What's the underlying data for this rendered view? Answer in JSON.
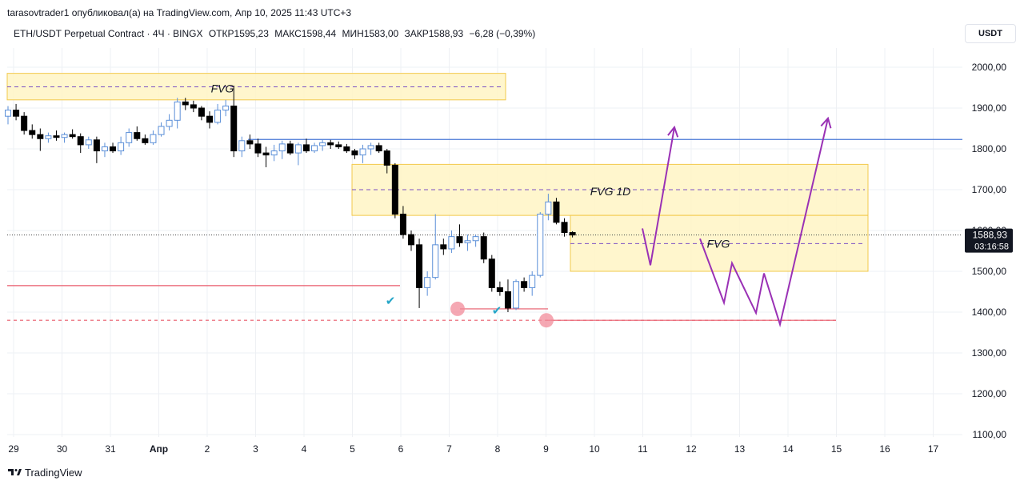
{
  "header": {
    "published_line": "tarasovtrader1 опубликовал(а) на TradingView.com, Апр 10, 2025 11:43 UTC+3",
    "symbol": "ETH/USDT Perpetual Contract · 4Ч · BINGX",
    "open": "ОТКР1595,23",
    "high": "МАКС1598,44",
    "low": "МИН1583,00",
    "close": "ЗАКР1588,93",
    "change": "−6,28 (−0,39%)"
  },
  "currency_label": "USDT",
  "footer": {
    "brand": "TradingView"
  },
  "colors": {
    "bull": "#5b8fd8",
    "bear": "#000000",
    "fvg_fill": "#fff4c4",
    "fvg_border": "#f2c94c",
    "midline": "#7b4fc4",
    "blue_level": "#4a78d6",
    "red_level": "#e85a6a",
    "projection": "#9a31b5",
    "check": "#26a6c8"
  },
  "chart_data": {
    "type": "candlestick",
    "symbol": "ETH/USDT",
    "timeframe": "4Ч",
    "ylim": [
      1100,
      2000
    ],
    "y_ticks": [
      "2000,00",
      "1900,00",
      "1800,00",
      "1700,00",
      "1600,00",
      "1500,00",
      "1400,00",
      "1300,00",
      "1200,00",
      "1100,00"
    ],
    "x_ticks": [
      "29",
      "30",
      "31",
      "Апр",
      "2",
      "3",
      "4",
      "5",
      "6",
      "7",
      "8",
      "9",
      "10",
      "11",
      "12",
      "13",
      "14",
      "15",
      "16",
      "17"
    ],
    "current_price_label": "1588,93",
    "countdown_label": "03:16:58",
    "candles": [
      {
        "o": 1880,
        "h": 1905,
        "l": 1860,
        "c": 1895
      },
      {
        "o": 1895,
        "h": 1910,
        "l": 1870,
        "c": 1880
      },
      {
        "o": 1880,
        "h": 1890,
        "l": 1835,
        "c": 1845
      },
      {
        "o": 1845,
        "h": 1860,
        "l": 1825,
        "c": 1835
      },
      {
        "o": 1835,
        "h": 1850,
        "l": 1795,
        "c": 1825
      },
      {
        "o": 1825,
        "h": 1840,
        "l": 1815,
        "c": 1832
      },
      {
        "o": 1832,
        "h": 1845,
        "l": 1820,
        "c": 1828
      },
      {
        "o": 1828,
        "h": 1840,
        "l": 1815,
        "c": 1835
      },
      {
        "o": 1835,
        "h": 1848,
        "l": 1825,
        "c": 1830
      },
      {
        "o": 1830,
        "h": 1838,
        "l": 1790,
        "c": 1810
      },
      {
        "o": 1810,
        "h": 1830,
        "l": 1800,
        "c": 1822
      },
      {
        "o": 1822,
        "h": 1830,
        "l": 1765,
        "c": 1795
      },
      {
        "o": 1795,
        "h": 1815,
        "l": 1780,
        "c": 1805
      },
      {
        "o": 1805,
        "h": 1815,
        "l": 1790,
        "c": 1795
      },
      {
        "o": 1795,
        "h": 1830,
        "l": 1785,
        "c": 1815
      },
      {
        "o": 1815,
        "h": 1850,
        "l": 1805,
        "c": 1840
      },
      {
        "o": 1840,
        "h": 1855,
        "l": 1820,
        "c": 1825
      },
      {
        "o": 1825,
        "h": 1835,
        "l": 1810,
        "c": 1815
      },
      {
        "o": 1815,
        "h": 1845,
        "l": 1810,
        "c": 1835
      },
      {
        "o": 1835,
        "h": 1865,
        "l": 1830,
        "c": 1855
      },
      {
        "o": 1855,
        "h": 1885,
        "l": 1845,
        "c": 1870
      },
      {
        "o": 1870,
        "h": 1925,
        "l": 1850,
        "c": 1915
      },
      {
        "o": 1915,
        "h": 1925,
        "l": 1895,
        "c": 1908
      },
      {
        "o": 1908,
        "h": 1918,
        "l": 1890,
        "c": 1900
      },
      {
        "o": 1900,
        "h": 1905,
        "l": 1870,
        "c": 1880
      },
      {
        "o": 1880,
        "h": 1892,
        "l": 1850,
        "c": 1865
      },
      {
        "o": 1865,
        "h": 1910,
        "l": 1860,
        "c": 1895
      },
      {
        "o": 1895,
        "h": 1920,
        "l": 1880,
        "c": 1905
      },
      {
        "o": 1905,
        "h": 1955,
        "l": 1780,
        "c": 1795
      },
      {
        "o": 1795,
        "h": 1830,
        "l": 1780,
        "c": 1820
      },
      {
        "o": 1820,
        "h": 1835,
        "l": 1800,
        "c": 1812
      },
      {
        "o": 1812,
        "h": 1825,
        "l": 1780,
        "c": 1790
      },
      {
        "o": 1790,
        "h": 1805,
        "l": 1755,
        "c": 1785
      },
      {
        "o": 1785,
        "h": 1810,
        "l": 1770,
        "c": 1795
      },
      {
        "o": 1795,
        "h": 1820,
        "l": 1775,
        "c": 1812
      },
      {
        "o": 1812,
        "h": 1820,
        "l": 1785,
        "c": 1790
      },
      {
        "o": 1790,
        "h": 1815,
        "l": 1760,
        "c": 1810
      },
      {
        "o": 1810,
        "h": 1825,
        "l": 1790,
        "c": 1795
      },
      {
        "o": 1795,
        "h": 1815,
        "l": 1790,
        "c": 1808
      },
      {
        "o": 1808,
        "h": 1823,
        "l": 1795,
        "c": 1815
      },
      {
        "o": 1815,
        "h": 1822,
        "l": 1800,
        "c": 1810
      },
      {
        "o": 1810,
        "h": 1818,
        "l": 1800,
        "c": 1805
      },
      {
        "o": 1805,
        "h": 1812,
        "l": 1790,
        "c": 1795
      },
      {
        "o": 1795,
        "h": 1800,
        "l": 1775,
        "c": 1785
      },
      {
        "o": 1785,
        "h": 1810,
        "l": 1765,
        "c": 1800
      },
      {
        "o": 1800,
        "h": 1815,
        "l": 1785,
        "c": 1808
      },
      {
        "o": 1808,
        "h": 1815,
        "l": 1790,
        "c": 1795
      },
      {
        "o": 1795,
        "h": 1800,
        "l": 1740,
        "c": 1760
      },
      {
        "o": 1760,
        "h": 1765,
        "l": 1630,
        "c": 1640
      },
      {
        "o": 1640,
        "h": 1660,
        "l": 1580,
        "c": 1590
      },
      {
        "o": 1590,
        "h": 1600,
        "l": 1550,
        "c": 1565
      },
      {
        "o": 1565,
        "h": 1580,
        "l": 1410,
        "c": 1460
      },
      {
        "o": 1460,
        "h": 1500,
        "l": 1440,
        "c": 1485
      },
      {
        "o": 1485,
        "h": 1640,
        "l": 1480,
        "c": 1565
      },
      {
        "o": 1565,
        "h": 1580,
        "l": 1540,
        "c": 1555
      },
      {
        "o": 1555,
        "h": 1600,
        "l": 1545,
        "c": 1585
      },
      {
        "o": 1585,
        "h": 1615,
        "l": 1560,
        "c": 1570
      },
      {
        "o": 1570,
        "h": 1590,
        "l": 1550,
        "c": 1575
      },
      {
        "o": 1575,
        "h": 1590,
        "l": 1560,
        "c": 1585
      },
      {
        "o": 1585,
        "h": 1595,
        "l": 1520,
        "c": 1530
      },
      {
        "o": 1530,
        "h": 1540,
        "l": 1450,
        "c": 1460
      },
      {
        "o": 1460,
        "h": 1475,
        "l": 1440,
        "c": 1450
      },
      {
        "o": 1450,
        "h": 1480,
        "l": 1400,
        "c": 1410
      },
      {
        "o": 1410,
        "h": 1480,
        "l": 1405,
        "c": 1475
      },
      {
        "o": 1475,
        "h": 1485,
        "l": 1450,
        "c": 1460
      },
      {
        "o": 1460,
        "h": 1500,
        "l": 1440,
        "c": 1490
      },
      {
        "o": 1490,
        "h": 1645,
        "l": 1485,
        "c": 1640
      },
      {
        "o": 1640,
        "h": 1690,
        "l": 1625,
        "c": 1670
      },
      {
        "o": 1670,
        "h": 1680,
        "l": 1615,
        "c": 1620
      },
      {
        "o": 1620,
        "h": 1630,
        "l": 1585,
        "c": 1595
      },
      {
        "o": 1595,
        "h": 1598,
        "l": 1583,
        "c": 1589
      }
    ],
    "zones": [
      {
        "label": "FVG",
        "top": 1985,
        "bottom": 1920,
        "mid": 1952
      },
      {
        "label": "FVG 1D",
        "top": 1762,
        "bottom": 1637,
        "mid": 1700
      },
      {
        "label": "FVG",
        "top": 1637,
        "bottom": 1500,
        "mid": 1568
      }
    ],
    "levels": [
      {
        "name": "resistance",
        "value": 1823
      },
      {
        "name": "support",
        "value": 1465
      },
      {
        "name": "low-1",
        "value": 1408
      },
      {
        "name": "low-2",
        "value": 1380
      }
    ],
    "last_price": 1588.93
  }
}
